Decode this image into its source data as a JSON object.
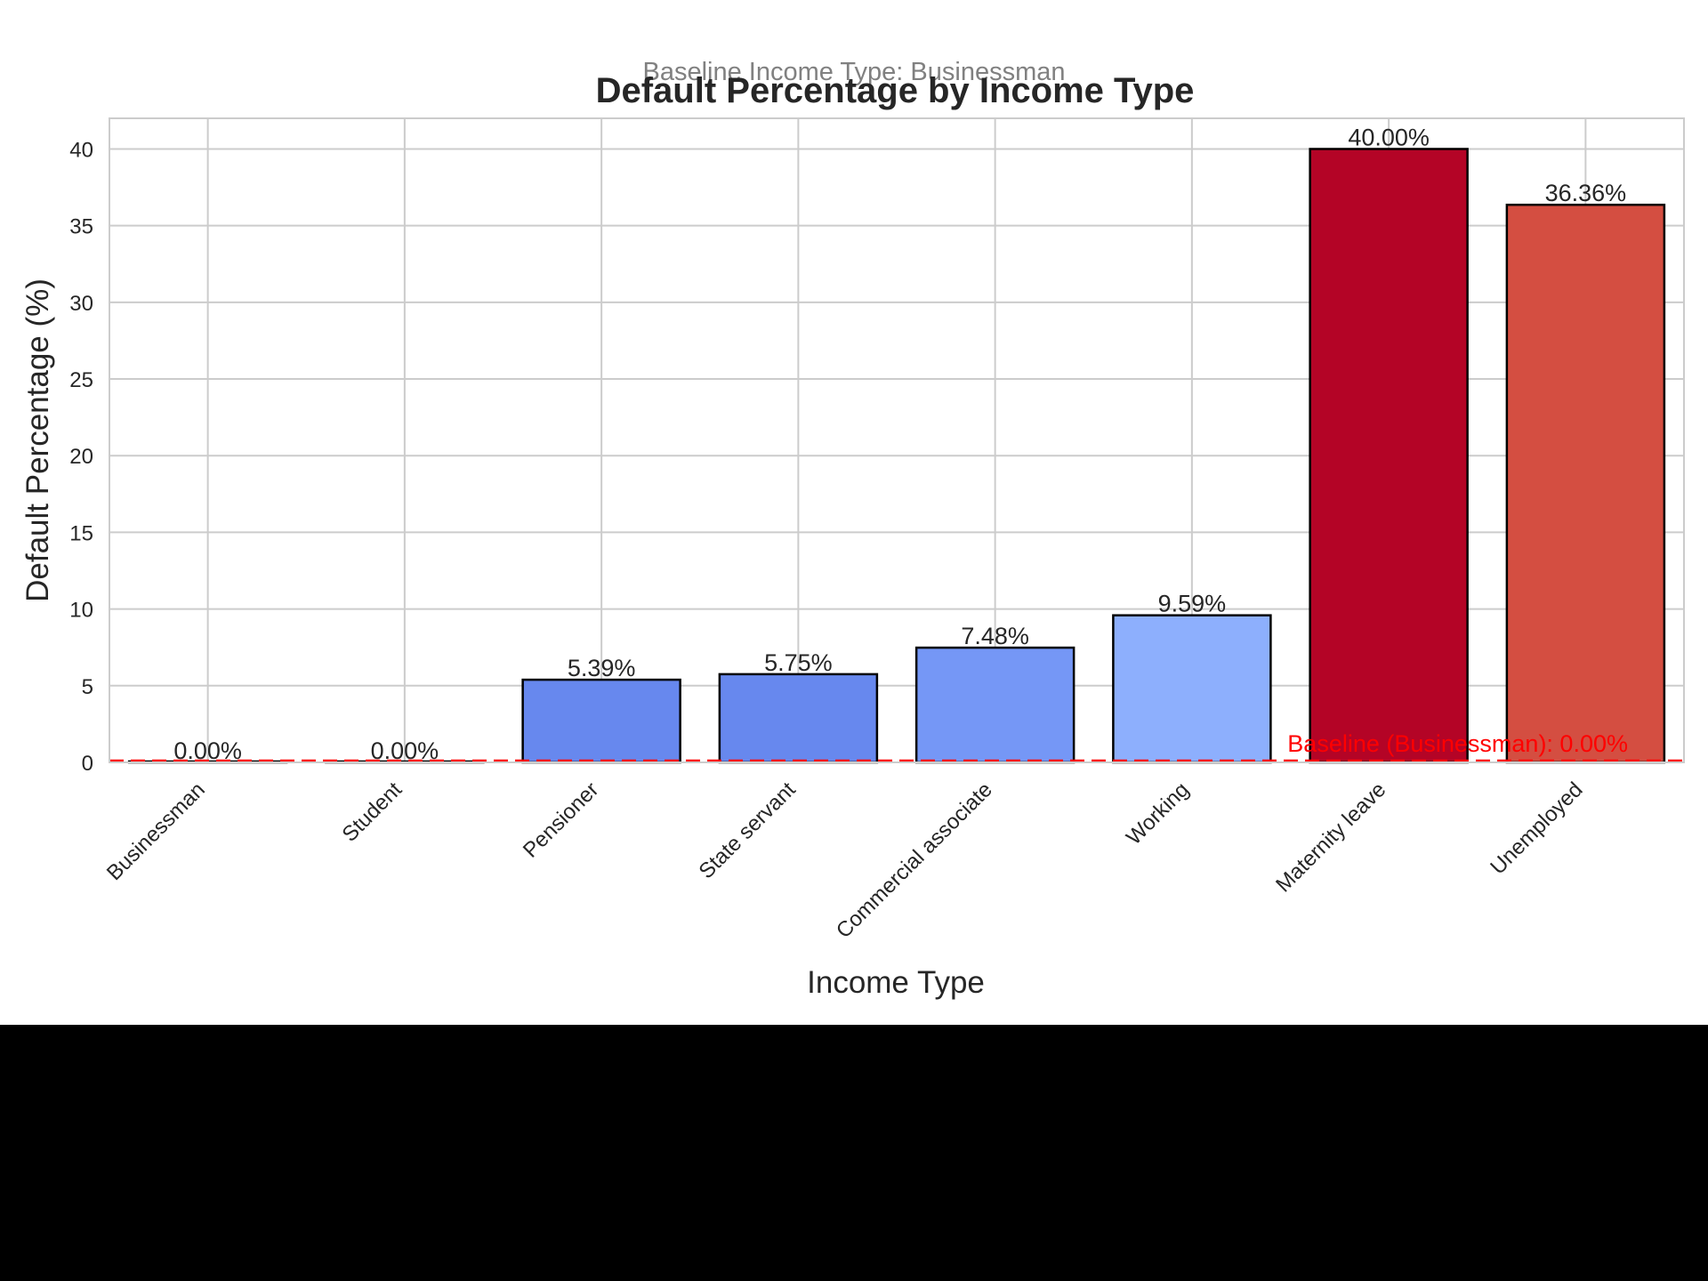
{
  "chart_data": {
    "type": "bar",
    "title": "Default Percentage by Income Type",
    "subtitle": "Baseline Income Type: Businessman",
    "xlabel": "Income Type",
    "ylabel": "Default Percentage (%)",
    "categories": [
      "Businessman",
      "Student",
      "Pensioner",
      "State servant",
      "Commercial associate",
      "Working",
      "Maternity leave",
      "Unemployed"
    ],
    "values": [
      0.0,
      0.0,
      5.39,
      5.75,
      7.48,
      9.59,
      40.0,
      36.36
    ],
    "value_labels": [
      "0.00%",
      "0.00%",
      "5.39%",
      "5.75%",
      "7.48%",
      "9.59%",
      "40.00%",
      "36.36%"
    ],
    "bar_colors": [
      "#3b4cc0",
      "#3b4cc0",
      "#6788ee",
      "#6788ee",
      "#7597f6",
      "#8daffd",
      "#b40426",
      "#d44e41"
    ],
    "yticks": [
      0,
      5,
      10,
      15,
      20,
      25,
      30,
      35,
      40
    ],
    "ylim": [
      0,
      42
    ],
    "grid": true,
    "baseline": {
      "value": 0.0,
      "label": "Baseline (Businessman): 0.00%",
      "color": "#ff0000",
      "style": "dashed"
    },
    "colors": {
      "title": "#262626",
      "subtitle": "#808080",
      "grid": "#cccccc",
      "text": "#262626",
      "baseline": "#ff0000"
    }
  }
}
